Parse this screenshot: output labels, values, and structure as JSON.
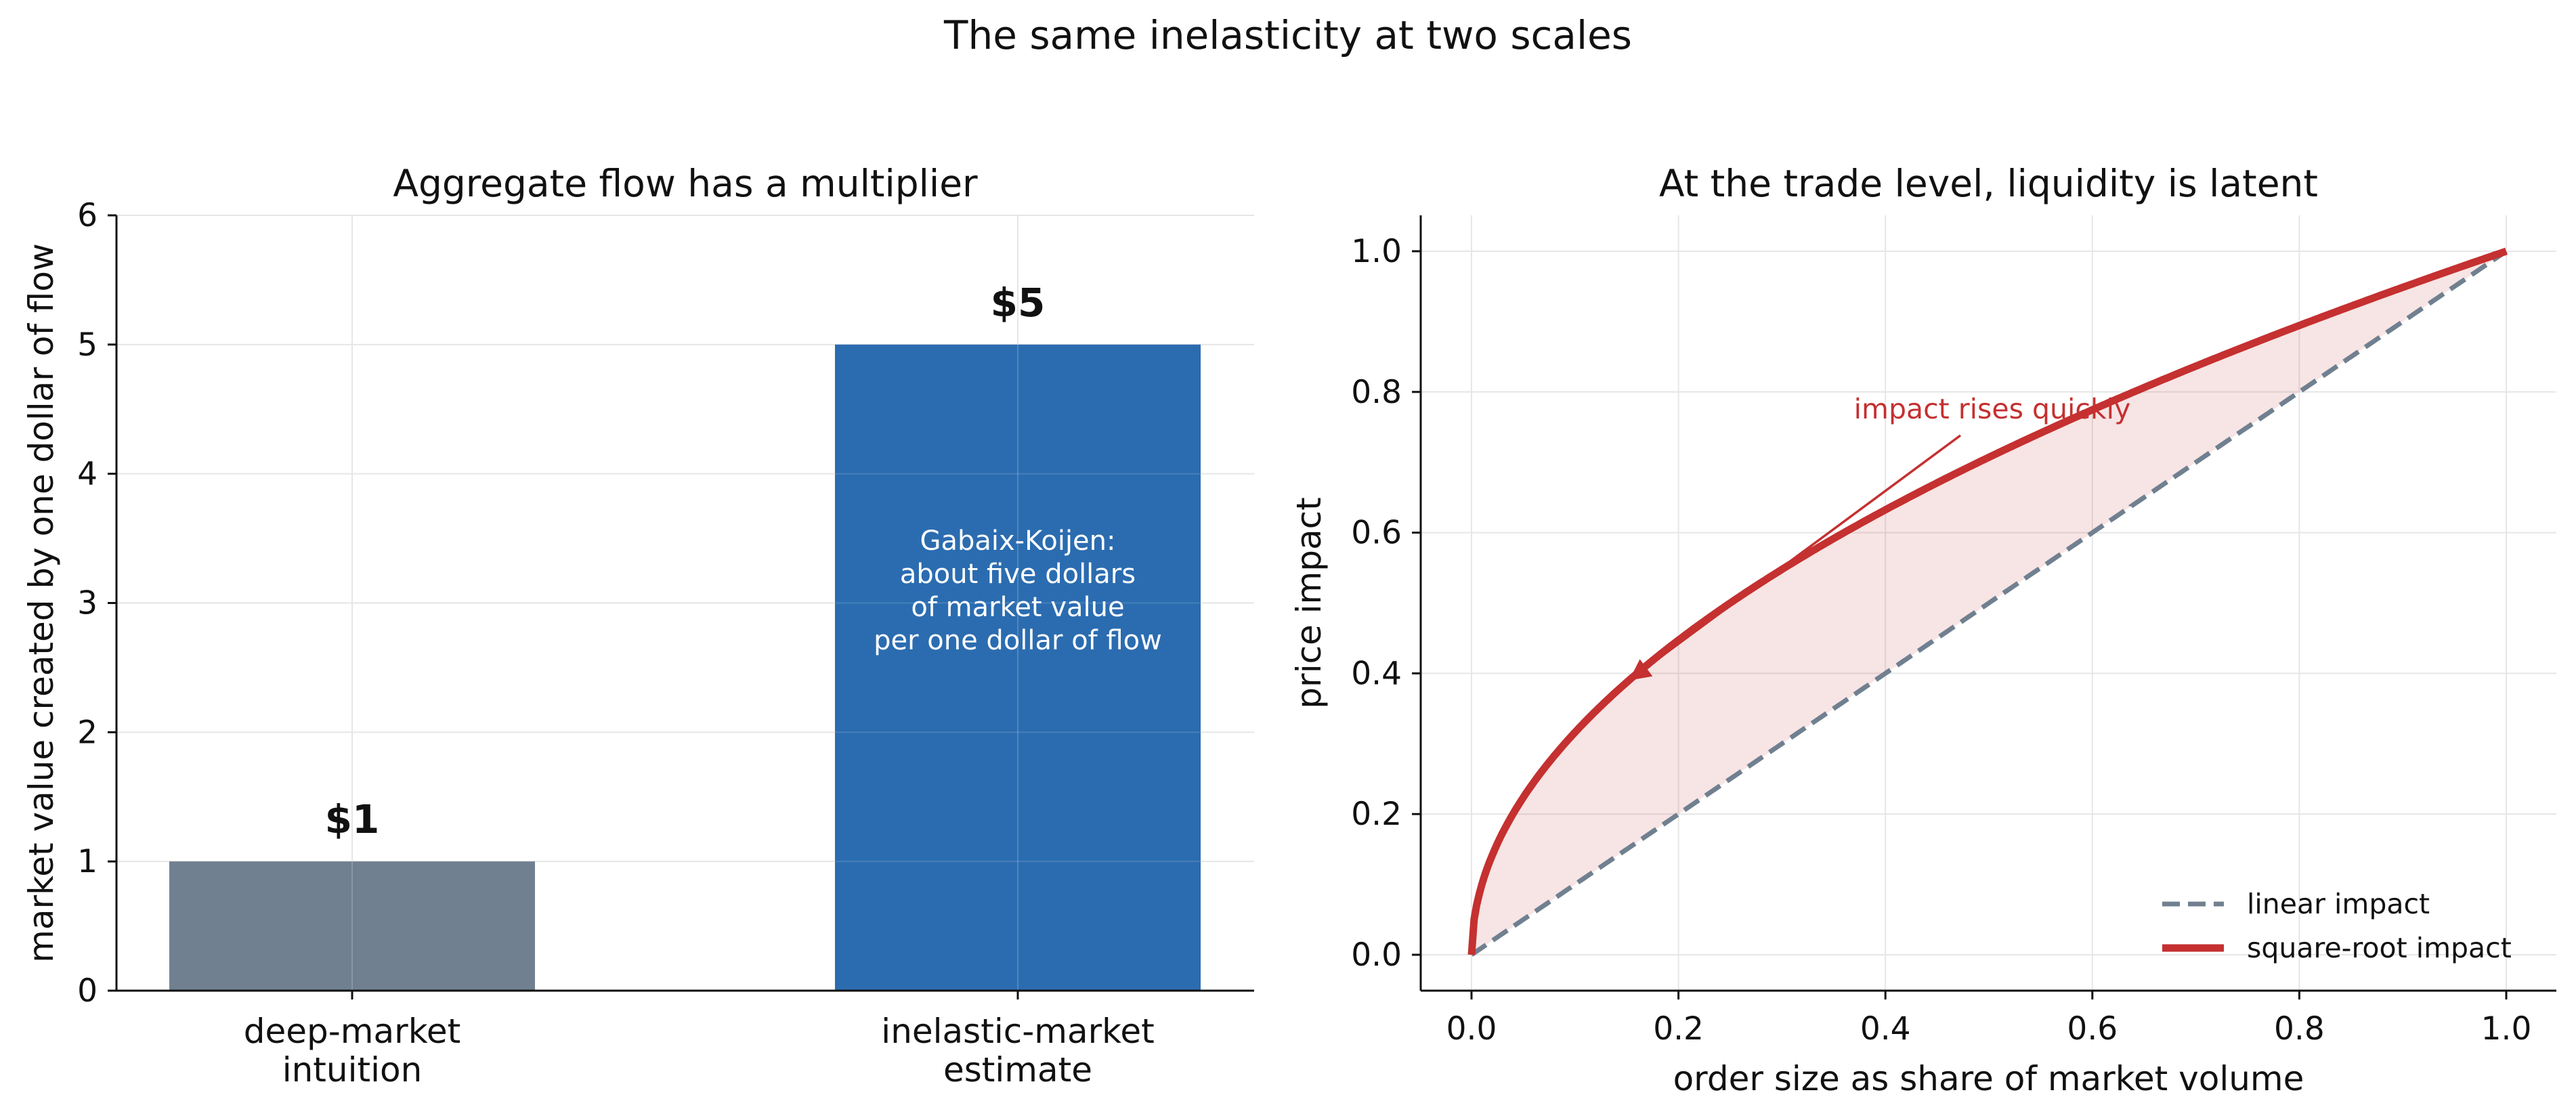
{
  "title": "The same inelasticity at two scales",
  "chart_data": [
    {
      "type": "bar",
      "title": "Aggregate flow has a multiplier",
      "categories": [
        "deep-market\nintuition",
        "inelastic-market\nestimate"
      ],
      "values": [
        1,
        5
      ],
      "value_labels": [
        "$1",
        "$5"
      ],
      "ylabel": "market value created by one dollar of flow",
      "xlabel": "",
      "ylim": [
        0,
        6
      ],
      "yticks": [
        0,
        1,
        2,
        3,
        4,
        5,
        6
      ],
      "grid": true,
      "colors": [
        "#708090",
        "#2b6cb0"
      ],
      "annotation": "Gabaix-Koijen:\nabout five dollars\nof market value\nper one dollar of flow"
    },
    {
      "type": "line",
      "title": "At the trade level, liquidity is latent",
      "xlabel": "order size as share of market volume",
      "ylabel": "price impact",
      "xlim": [
        -0.05,
        1.05
      ],
      "ylim": [
        -0.05,
        1.05
      ],
      "xticks": [
        0.0,
        0.2,
        0.4,
        0.6,
        0.8,
        1.0
      ],
      "yticks": [
        0.0,
        0.2,
        0.4,
        0.6,
        0.8,
        1.0
      ],
      "tick_labels": [
        "0.0",
        "0.2",
        "0.4",
        "0.6",
        "0.8",
        "1.0"
      ],
      "grid": true,
      "legend_position": "lower-right",
      "series": [
        {
          "name": "linear impact",
          "function": "y = x",
          "color": "#708090",
          "style": "dashed"
        },
        {
          "name": "square-root impact",
          "function": "y = sqrt(x)",
          "color": "#c53030",
          "style": "solid"
        }
      ],
      "fill_between": {
        "color": "#c53030",
        "opacity": 0.13
      },
      "annotation": {
        "text": "impact rises quickly",
        "arrow_to": [
          0.15,
          0.387
        ],
        "color": "#c53030"
      }
    }
  ]
}
